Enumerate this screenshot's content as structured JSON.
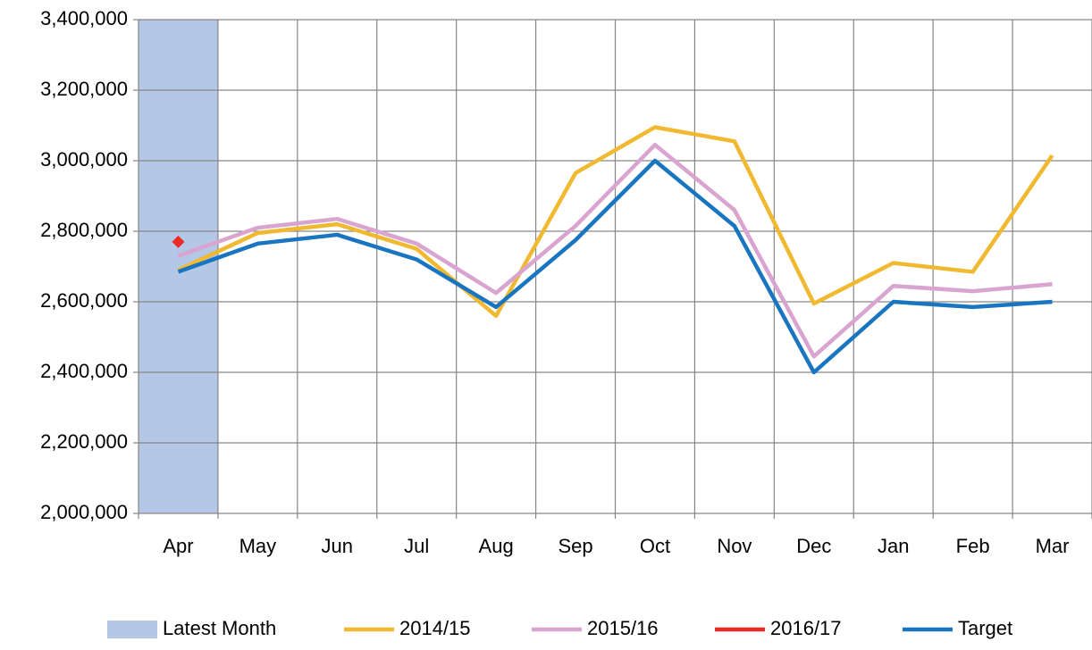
{
  "chart_data": {
    "type": "line",
    "categories": [
      "Apr",
      "May",
      "Jun",
      "Jul",
      "Aug",
      "Sep",
      "Oct",
      "Nov",
      "Dec",
      "Jan",
      "Feb",
      "Mar"
    ],
    "series": [
      {
        "name": "Latest Month",
        "type": "bar",
        "color": "#b4c7e7",
        "values": [
          3400000,
          null,
          null,
          null,
          null,
          null,
          null,
          null,
          null,
          null,
          null,
          null
        ]
      },
      {
        "name": "2014/15",
        "type": "line",
        "color": "#f0b92f",
        "values": [
          2690000,
          2795000,
          2820000,
          2750000,
          2560000,
          2965000,
          3095000,
          3055000,
          2595000,
          2710000,
          2685000,
          3015000
        ]
      },
      {
        "name": "2015/16",
        "type": "line",
        "color": "#d9a4d0",
        "values": [
          2730000,
          2810000,
          2835000,
          2765000,
          2625000,
          2815000,
          3045000,
          2860000,
          2445000,
          2645000,
          2630000,
          2650000
        ]
      },
      {
        "name": "2016/17",
        "type": "line",
        "color": "#ee2a24",
        "values": [
          2770000,
          null,
          null,
          null,
          null,
          null,
          null,
          null,
          null,
          null,
          null,
          null
        ]
      },
      {
        "name": "Target",
        "type": "line",
        "color": "#1a75c1",
        "values": [
          2685000,
          2765000,
          2790000,
          2720000,
          2585000,
          2775000,
          3000000,
          2815000,
          2400000,
          2600000,
          2585000,
          2600000
        ]
      }
    ],
    "ylim": [
      2000000,
      3400000
    ],
    "yticks": [
      {
        "value": 2000000,
        "label": "2,000,000"
      },
      {
        "value": 2200000,
        "label": "2,200,000"
      },
      {
        "value": 2400000,
        "label": "2,400,000"
      },
      {
        "value": 2600000,
        "label": "2,600,000"
      },
      {
        "value": 2800000,
        "label": "2,800,000"
      },
      {
        "value": 3000000,
        "label": "3,000,000"
      },
      {
        "value": 3200000,
        "label": "3,200,000"
      },
      {
        "value": 3400000,
        "label": "3,400,000"
      }
    ],
    "grid": true,
    "legend": "bottom"
  }
}
